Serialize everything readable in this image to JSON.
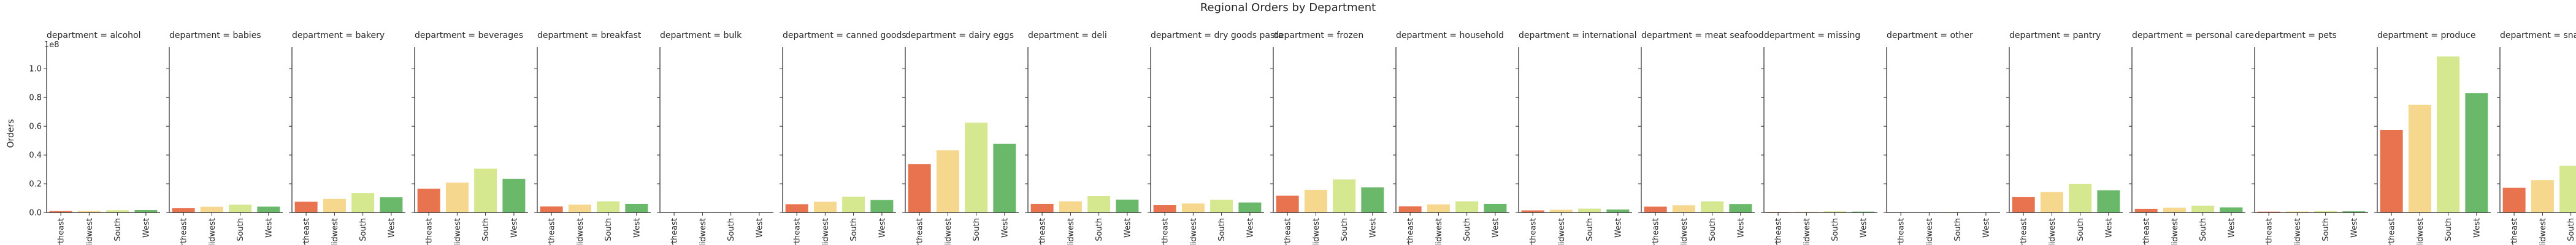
{
  "chart_data": {
    "type": "bar",
    "title": "Regional Orders by Department",
    "ylabel": "Orders",
    "xlabel": "",
    "y_offset_text": "1e8",
    "ylim": [
      0,
      1.15
    ],
    "yticks": [
      "0.0",
      "0.2",
      "0.4",
      "0.6",
      "0.8",
      "1.0"
    ],
    "categories": [
      "Northeast",
      "Midwest",
      "South",
      "West"
    ],
    "category_colors": [
      "#e8744f",
      "#f6d78e",
      "#d5e88f",
      "#6ab86a"
    ],
    "grid": false,
    "facet_label_prefix": "department = ",
    "panels": [
      {
        "department": "alcohol",
        "values": [
          0.011,
          0.012,
          0.016,
          0.017
        ]
      },
      {
        "department": "babies",
        "values": [
          0.03,
          0.04,
          0.055,
          0.041
        ]
      },
      {
        "department": "bakery",
        "values": [
          0.075,
          0.095,
          0.136,
          0.106
        ]
      },
      {
        "department": "beverages",
        "values": [
          0.166,
          0.208,
          0.305,
          0.235
        ]
      },
      {
        "department": "breakfast",
        "values": [
          0.042,
          0.055,
          0.078,
          0.06
        ]
      },
      {
        "department": "bulk",
        "values": [
          0.001,
          0.001,
          0.002,
          0.001
        ]
      },
      {
        "department": "canned goods",
        "values": [
          0.058,
          0.075,
          0.11,
          0.087
        ]
      },
      {
        "department": "dairy eggs",
        "values": [
          0.336,
          0.433,
          0.625,
          0.478
        ]
      },
      {
        "department": "deli",
        "values": [
          0.06,
          0.078,
          0.115,
          0.09
        ]
      },
      {
        "department": "dry goods pasta",
        "values": [
          0.051,
          0.063,
          0.089,
          0.07
        ]
      },
      {
        "department": "frozen",
        "values": [
          0.117,
          0.158,
          0.23,
          0.175
        ]
      },
      {
        "department": "household",
        "values": [
          0.043,
          0.057,
          0.078,
          0.06
        ]
      },
      {
        "department": "international",
        "values": [
          0.015,
          0.019,
          0.027,
          0.021
        ]
      },
      {
        "department": "meat seafood",
        "values": [
          0.041,
          0.05,
          0.078,
          0.059
        ]
      },
      {
        "department": "missing",
        "values": [
          0.004,
          0.005,
          0.008,
          0.006
        ]
      },
      {
        "department": "other",
        "values": [
          0.002,
          0.002,
          0.003,
          0.002
        ]
      },
      {
        "department": "pantry",
        "values": [
          0.107,
          0.143,
          0.2,
          0.155
        ]
      },
      {
        "department": "personal care",
        "values": [
          0.026,
          0.034,
          0.048,
          0.036
        ]
      },
      {
        "department": "pets",
        "values": [
          0.006,
          0.007,
          0.011,
          0.009
        ]
      },
      {
        "department": "produce",
        "values": [
          0.575,
          0.75,
          1.085,
          0.83
        ]
      },
      {
        "department": "snacks",
        "values": [
          0.172,
          0.225,
          0.325,
          0.25
        ]
      }
    ]
  }
}
